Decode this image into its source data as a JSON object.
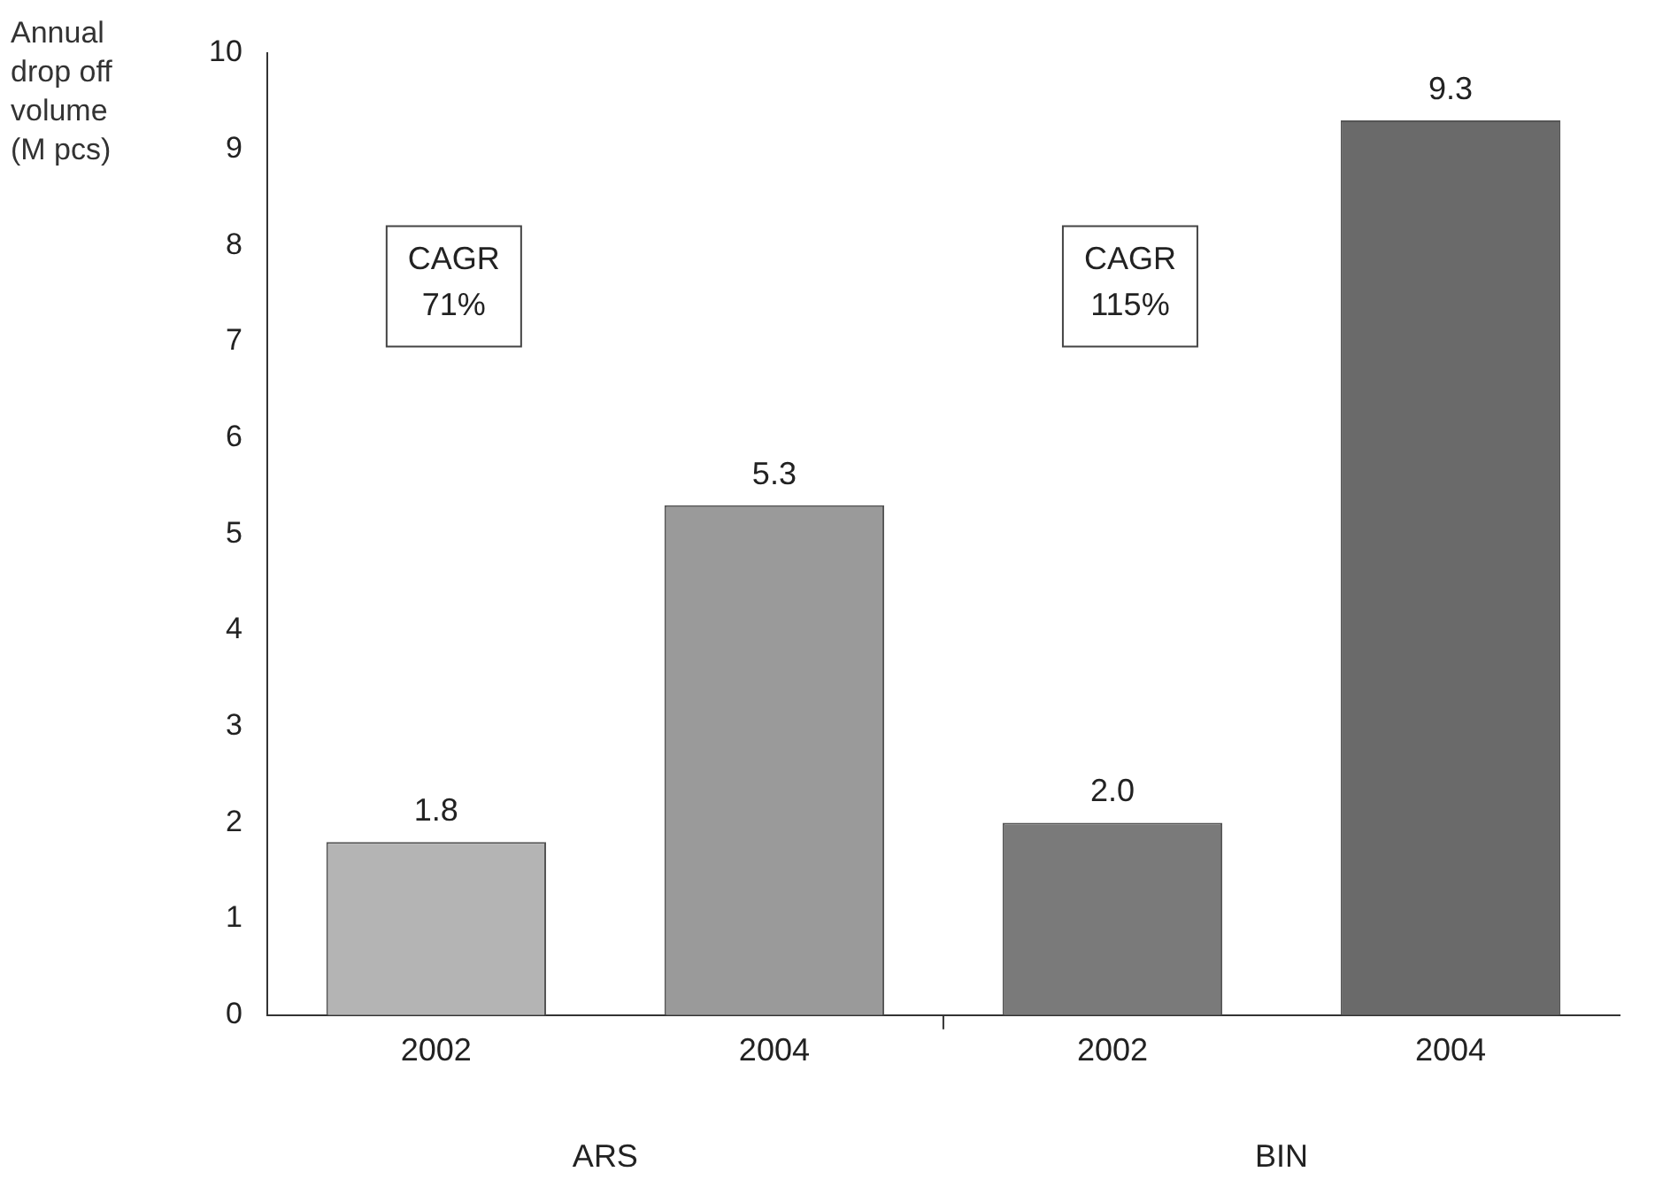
{
  "chart_data": {
    "type": "bar",
    "ylabel": "Annual drop off volume (M pcs)",
    "categories": [
      "2002",
      "2004",
      "2002",
      "2004"
    ],
    "values": [
      1.8,
      5.3,
      2.0,
      9.3
    ],
    "colors": [
      "#b4b4b4",
      "#9a9a9a",
      "#7a7a7a",
      "#6a6a6a"
    ],
    "ylim": [
      0,
      10
    ],
    "yticks": [
      0,
      1,
      2,
      3,
      4,
      5,
      6,
      7,
      8,
      9,
      10
    ],
    "value_labels": [
      "1.8",
      "5.3",
      "2.0",
      "9.3"
    ],
    "grid": false,
    "legend": false,
    "annotations": [
      "CAGR 71%",
      "CAGR 115%",
      "ARS",
      "BIN"
    ]
  }
}
